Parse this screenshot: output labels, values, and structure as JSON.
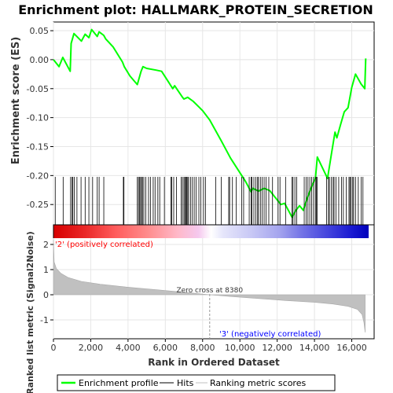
{
  "chart_data": {
    "type": "line",
    "title": "Enrichment plot: HALLMARK_PROTEIN_SECRETION",
    "xlabel": "Rank in Ordered Dataset",
    "ylabel_top": "Enrichment score (ES)",
    "ylabel_bottom": "Ranked list metric (Signal2Noise)",
    "xlim": [
      0,
      17200
    ],
    "x_ticks": [
      0,
      2000,
      4000,
      6000,
      8000,
      10000,
      12000,
      14000,
      16000
    ],
    "x_tick_labels": [
      "0",
      "2,000",
      "4,000",
      "6,000",
      "8,000",
      "10,000",
      "12,000",
      "14,000",
      "16,000"
    ],
    "top_ylim": [
      -0.285,
      0.065
    ],
    "top_y_ticks": [
      0.05,
      0.0,
      -0.05,
      -0.1,
      -0.15,
      -0.2,
      -0.25
    ],
    "top_y_tick_labels": [
      "0.05",
      "0.00",
      "-0.05",
      "-0.10",
      "-0.15",
      "-0.20",
      "-0.25"
    ],
    "bottom_ylim": [
      -1.75,
      2.25
    ],
    "bottom_y_ticks": [
      2,
      1,
      0,
      -1
    ],
    "bottom_y_tick_labels": [
      "2",
      "1",
      "0",
      "-1"
    ],
    "grid": true,
    "legend_position": "bottom",
    "legend": [
      {
        "label": "Enrichment profile",
        "color": "#00ff00"
      },
      {
        "label": "Hits",
        "color": "#000000"
      },
      {
        "label": "Ranking metric scores",
        "color": "#c0c0c0"
      }
    ],
    "zero_cross_label": "Zero cross at 8380",
    "zero_cross_x": 8380,
    "pos_label": "'2' (positively correlated)",
    "neg_label": "'3' (negatively correlated)",
    "pos_label_color": "#ff0000",
    "neg_label_color": "#0000ff",
    "es_curve": {
      "color": "#00ff00",
      "points": [
        [
          0,
          0
        ],
        [
          300,
          -0.012
        ],
        [
          500,
          0.004
        ],
        [
          900,
          -0.02
        ],
        [
          950,
          0.028
        ],
        [
          1100,
          0.045
        ],
        [
          1500,
          0.032
        ],
        [
          1700,
          0.044
        ],
        [
          1900,
          0.038
        ],
        [
          2050,
          0.052
        ],
        [
          2350,
          0.04
        ],
        [
          2450,
          0.048
        ],
        [
          2700,
          0.042
        ],
        [
          2800,
          0.036
        ],
        [
          3200,
          0.022
        ],
        [
          3700,
          -0.004
        ],
        [
          3800,
          -0.012
        ],
        [
          4100,
          -0.028
        ],
        [
          4500,
          -0.043
        ],
        [
          4700,
          -0.02
        ],
        [
          4800,
          -0.012
        ],
        [
          5000,
          -0.015
        ],
        [
          5500,
          -0.018
        ],
        [
          5800,
          -0.02
        ],
        [
          6100,
          -0.035
        ],
        [
          6400,
          -0.05
        ],
        [
          6500,
          -0.045
        ],
        [
          6900,
          -0.064
        ],
        [
          7000,
          -0.068
        ],
        [
          7200,
          -0.065
        ],
        [
          7500,
          -0.072
        ],
        [
          8000,
          -0.088
        ],
        [
          8380,
          -0.104
        ],
        [
          9000,
          -0.14
        ],
        [
          9500,
          -0.17
        ],
        [
          10000,
          -0.195
        ],
        [
          10300,
          -0.21
        ],
        [
          10600,
          -0.228
        ],
        [
          10700,
          -0.222
        ],
        [
          11000,
          -0.227
        ],
        [
          11300,
          -0.222
        ],
        [
          11600,
          -0.226
        ],
        [
          11900,
          -0.238
        ],
        [
          12200,
          -0.25
        ],
        [
          12400,
          -0.248
        ],
        [
          12800,
          -0.272
        ],
        [
          13000,
          -0.26
        ],
        [
          13200,
          -0.252
        ],
        [
          13400,
          -0.26
        ],
        [
          13600,
          -0.24
        ],
        [
          13900,
          -0.215
        ],
        [
          14050,
          -0.205
        ],
        [
          14150,
          -0.168
        ],
        [
          14700,
          -0.205
        ],
        [
          14900,
          -0.165
        ],
        [
          15100,
          -0.125
        ],
        [
          15200,
          -0.135
        ],
        [
          15400,
          -0.112
        ],
        [
          15600,
          -0.09
        ],
        [
          15800,
          -0.083
        ],
        [
          16000,
          -0.048
        ],
        [
          16200,
          -0.025
        ],
        [
          16500,
          -0.042
        ],
        [
          16700,
          -0.05
        ],
        [
          16750,
          0.002
        ]
      ]
    },
    "hits": [
      95,
      520,
      920,
      1000,
      1040,
      1120,
      1260,
      1480,
      1700,
      1900,
      2100,
      2350,
      2450,
      2700,
      3750,
      3780,
      4500,
      4560,
      4620,
      4680,
      4720,
      4780,
      4850,
      4950,
      5100,
      5200,
      5350,
      5450,
      5600,
      5700,
      5950,
      6300,
      6350,
      6450,
      6600,
      6850,
      6920,
      7000,
      7050,
      7100,
      7150,
      7200,
      7250,
      7350,
      7450,
      7550,
      7650,
      7800,
      7900,
      8050,
      8150,
      8700,
      9000,
      9400,
      9450,
      9600,
      9800,
      10100,
      10200,
      10500,
      10600,
      10650,
      10750,
      10850,
      10950,
      11000,
      11100,
      11200,
      11300,
      11400,
      11550,
      11750,
      12050,
      12150,
      12450,
      12800,
      12850,
      12950,
      13050,
      13450,
      13550,
      13650,
      13750,
      13850,
      13950,
      14050,
      14100,
      14150,
      14650,
      14750,
      14800,
      14900,
      15000,
      15050,
      15150,
      15300,
      15450,
      15550,
      15700,
      15850,
      15900,
      15950,
      16050,
      16100,
      16200,
      16350,
      16500,
      16600
    ],
    "ranking_metric": {
      "fill_color": "#c0c0c0",
      "points": [
        [
          0,
          2.2
        ],
        [
          40,
          1.3
        ],
        [
          150,
          1.05
        ],
        [
          400,
          0.85
        ],
        [
          800,
          0.68
        ],
        [
          1500,
          0.53
        ],
        [
          2500,
          0.42
        ],
        [
          4000,
          0.3
        ],
        [
          5500,
          0.2
        ],
        [
          7000,
          0.1
        ],
        [
          8380,
          0.0
        ],
        [
          9500,
          -0.07
        ],
        [
          11000,
          -0.15
        ],
        [
          12500,
          -0.23
        ],
        [
          14000,
          -0.3
        ],
        [
          15000,
          -0.37
        ],
        [
          15800,
          -0.46
        ],
        [
          16300,
          -0.58
        ],
        [
          16550,
          -0.78
        ],
        [
          16650,
          -1.1
        ],
        [
          16720,
          -1.5
        ]
      ]
    },
    "colorbar_stops": [
      {
        "x": 0,
        "color": "#d70000"
      },
      {
        "x": 1700,
        "color": "#ea2828"
      },
      {
        "x": 3300,
        "color": "#ff5c5c"
      },
      {
        "x": 5000,
        "color": "#ff8c8c"
      },
      {
        "x": 6600,
        "color": "#ffb8c8"
      },
      {
        "x": 7700,
        "color": "#f5c8ee"
      },
      {
        "x": 8380,
        "color": "#ffffff"
      },
      {
        "x": 9000,
        "color": "#e6e6fb"
      },
      {
        "x": 10500,
        "color": "#c8c8f5"
      },
      {
        "x": 12000,
        "color": "#a4a4ee"
      },
      {
        "x": 13200,
        "color": "#7373e6"
      },
      {
        "x": 14700,
        "color": "#4040dc"
      },
      {
        "x": 15800,
        "color": "#1a1ad2"
      },
      {
        "x": 16750,
        "color": "#0000bb"
      }
    ]
  }
}
